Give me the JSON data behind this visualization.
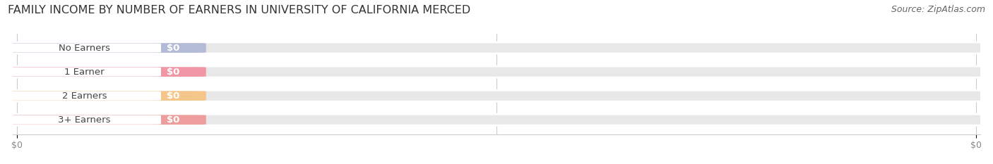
{
  "title": "FAMILY INCOME BY NUMBER OF EARNERS IN UNIVERSITY OF CALIFORNIA MERCED",
  "source": "Source: ZipAtlas.com",
  "categories": [
    "No Earners",
    "1 Earner",
    "2 Earners",
    "3+ Earners"
  ],
  "values": [
    0,
    0,
    0,
    0
  ],
  "bar_colors": [
    "#aab4d4",
    "#f28898",
    "#f8c07a",
    "#f09090"
  ],
  "background_color": "#ffffff",
  "bar_bg_color": "#e8e8e8",
  "title_fontsize": 11.5,
  "source_fontsize": 9,
  "label_fontsize": 9.5,
  "value_fontsize": 9.5,
  "x_tick_fontsize": 9
}
